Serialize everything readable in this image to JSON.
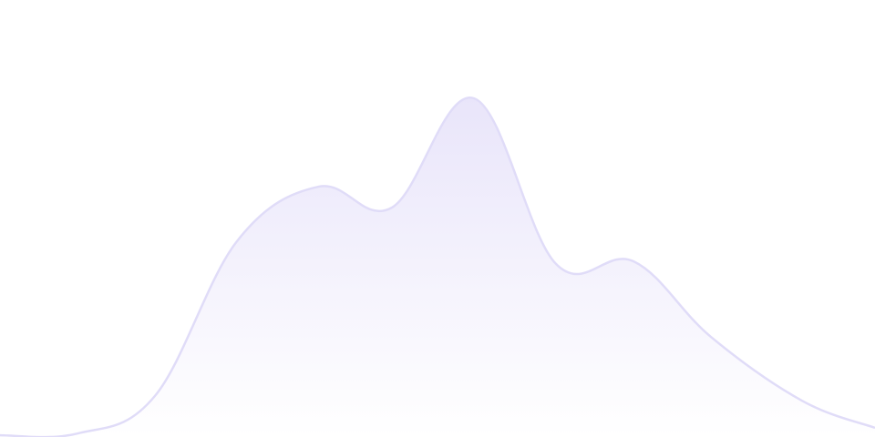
{
  "chart_data": {
    "type": "area",
    "title": "",
    "xlabel": "",
    "ylabel": "",
    "x": [
      0,
      1,
      2,
      3,
      4,
      5,
      6,
      7,
      8,
      9,
      10,
      11
    ],
    "values": [
      0.4,
      0.8,
      9.4,
      44.8,
      57.3,
      52.5,
      77.5,
      39.6,
      40.2,
      22.9,
      8.3,
      2.1
    ],
    "ylim": [
      0,
      100
    ],
    "xlim": [
      0,
      11
    ],
    "grid": false,
    "axes_visible": false,
    "legend": "none",
    "smooth": true,
    "colors": {
      "line": "#e0dcf8",
      "fill_top": "#e9e5fa",
      "fill_bottom": "#ffffff"
    }
  }
}
